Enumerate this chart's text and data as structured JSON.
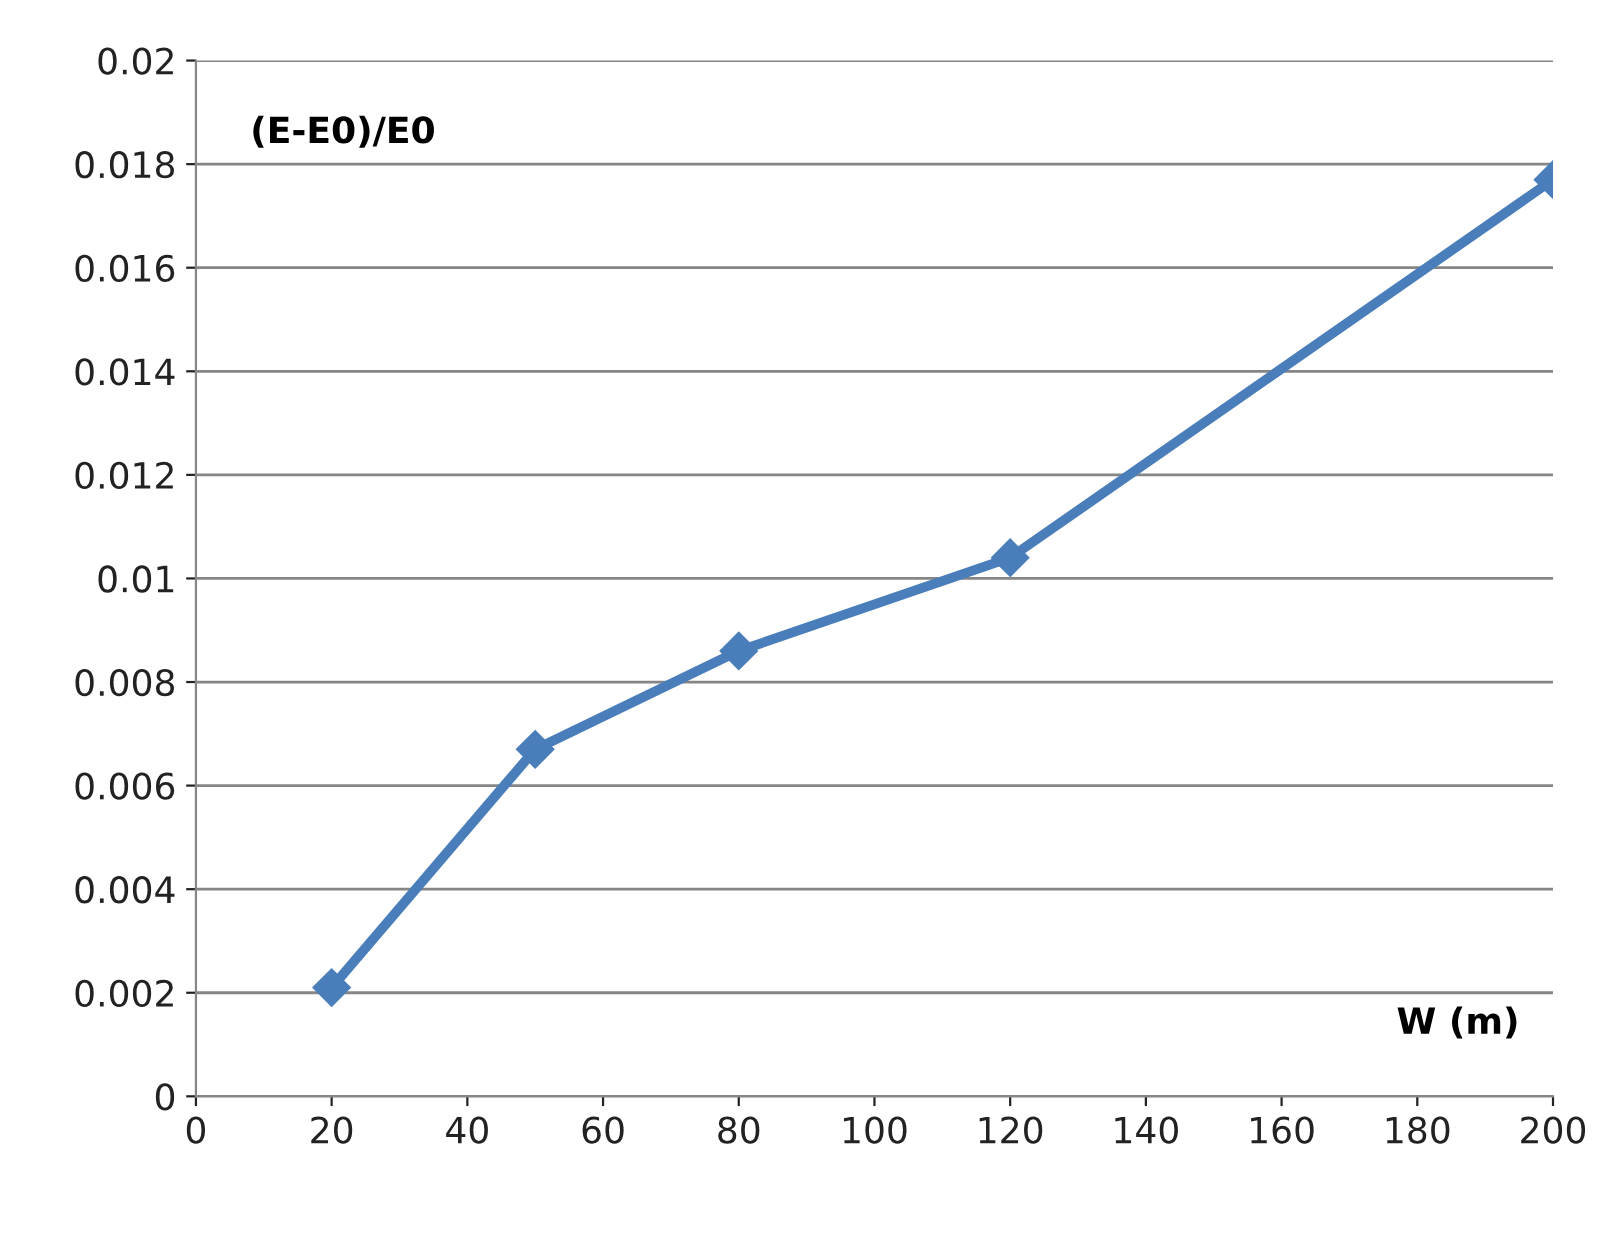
{
  "chart_data": {
    "type": "line",
    "xlabel": "W (m)",
    "ylabel": "(E-E0)/E0",
    "x": [
      20,
      50,
      80,
      120,
      200
    ],
    "series": [
      {
        "color": "#4a7ebb",
        "values": [
          0.0021,
          0.0067,
          0.0086,
          0.0104,
          0.0177
        ]
      }
    ],
    "xlim": [
      0,
      200
    ],
    "xticks": [
      0,
      20,
      40,
      60,
      80,
      100,
      120,
      140,
      160,
      180,
      200
    ],
    "ylim": [
      0,
      0.02
    ],
    "yticks": [
      0,
      0.002,
      0.004,
      0.006,
      0.008,
      0.01,
      0.012,
      0.014,
      0.016,
      0.018,
      0.02
    ],
    "grid": "y",
    "marker": "diamond",
    "line_style": "solid"
  }
}
